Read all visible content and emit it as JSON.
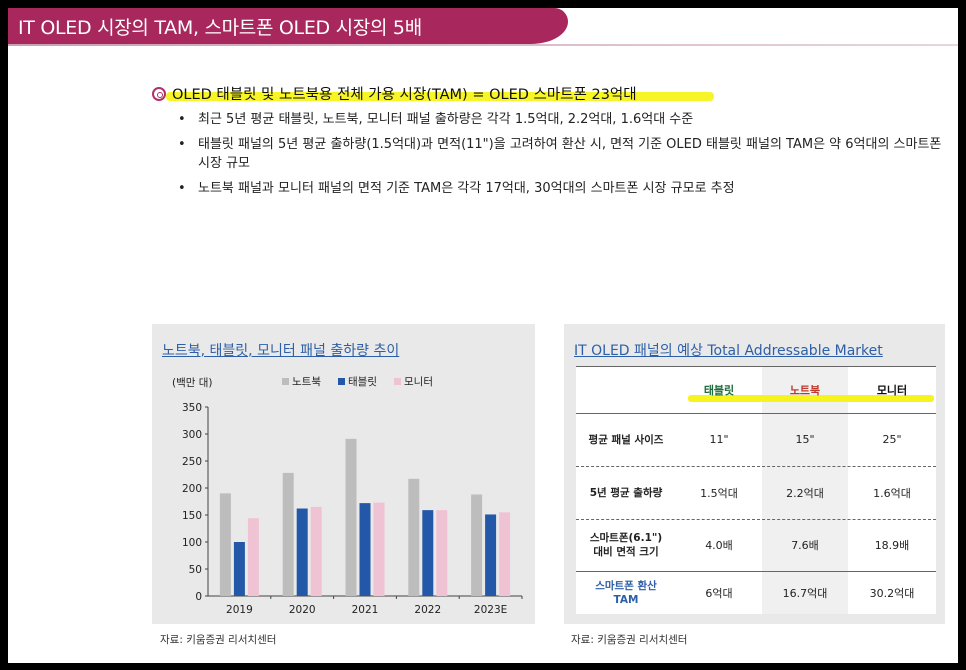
{
  "title": "IT OLED 시장의 TAM, 스마트폰 OLED 시장의 5배",
  "headline": "OLED 태블릿 및 노트북용 전체 가용 시장(TAM) = OLED 스마트폰 23억대",
  "bullets": [
    "최근 5년 평균 태블릿, 노트북, 모니터 패널 출하량은 각각 1.5억대, 2.2억대, 1.6억대 수준",
    "태블릿 패널의 5년 평균 출하량(1.5억대)과 면적(11\")을 고려하여 환산 시, 면적 기준 OLED 태블릿 패널의 TAM은 약 6억대의 스마트폰 시장 규모",
    "노트북 패널과 모니터 패널의 면적 기준 TAM은 각각 17억대, 30억대의 스마트폰 시장 규모로 추정"
  ],
  "left_panel": {
    "title": "노트북, 태블릿, 모니터 패널 출하량 추이",
    "source": "자료: 키움증권 리서치센터"
  },
  "right_panel": {
    "title": "IT OLED 패널의 예상 Total Addressable Market",
    "source": "자료: 키움증권 리서치센터",
    "columns": [
      {
        "label": "태블릿",
        "color": "#1f6b3a"
      },
      {
        "label": "노트북",
        "color": "#c0392b"
      },
      {
        "label": "모니터",
        "color": "#111111"
      }
    ],
    "rows": [
      {
        "label": "평균 패널 사이즈",
        "values": [
          "11\"",
          "15\"",
          "25\""
        ],
        "label_color": "#222222"
      },
      {
        "label": "5년 평균 출하량",
        "values": [
          "1.5억대",
          "2.2억대",
          "1.6억대"
        ],
        "label_color": "#222222"
      },
      {
        "label": "스마트폰(6.1\")\n대비 면적 크기",
        "values": [
          "4.0배",
          "7.6배",
          "18.9배"
        ],
        "label_color": "#222222"
      },
      {
        "label": "스마트폰 환산\nTAM",
        "values": [
          "6억대",
          "16.7억대",
          "30.2억대"
        ],
        "label_color": "#2d5fa8"
      }
    ]
  },
  "chart_data": {
    "type": "bar",
    "ylabel": "(백만 대)",
    "ylim": [
      0,
      350
    ],
    "yticks": [
      0,
      50,
      100,
      150,
      200,
      250,
      300,
      350
    ],
    "categories": [
      "2019",
      "2020",
      "2021",
      "2022",
      "2023E"
    ],
    "legend_position": "top",
    "grid": false,
    "series": [
      {
        "name": "노트북",
        "color": "#bdbdbd",
        "values": [
          190,
          228,
          291,
          217,
          188
        ]
      },
      {
        "name": "태블릿",
        "color": "#2358a8",
        "values": [
          100,
          162,
          172,
          159,
          151
        ]
      },
      {
        "name": "모니터",
        "color": "#efc3d3",
        "values": [
          144,
          165,
          173,
          159,
          155
        ]
      }
    ]
  }
}
